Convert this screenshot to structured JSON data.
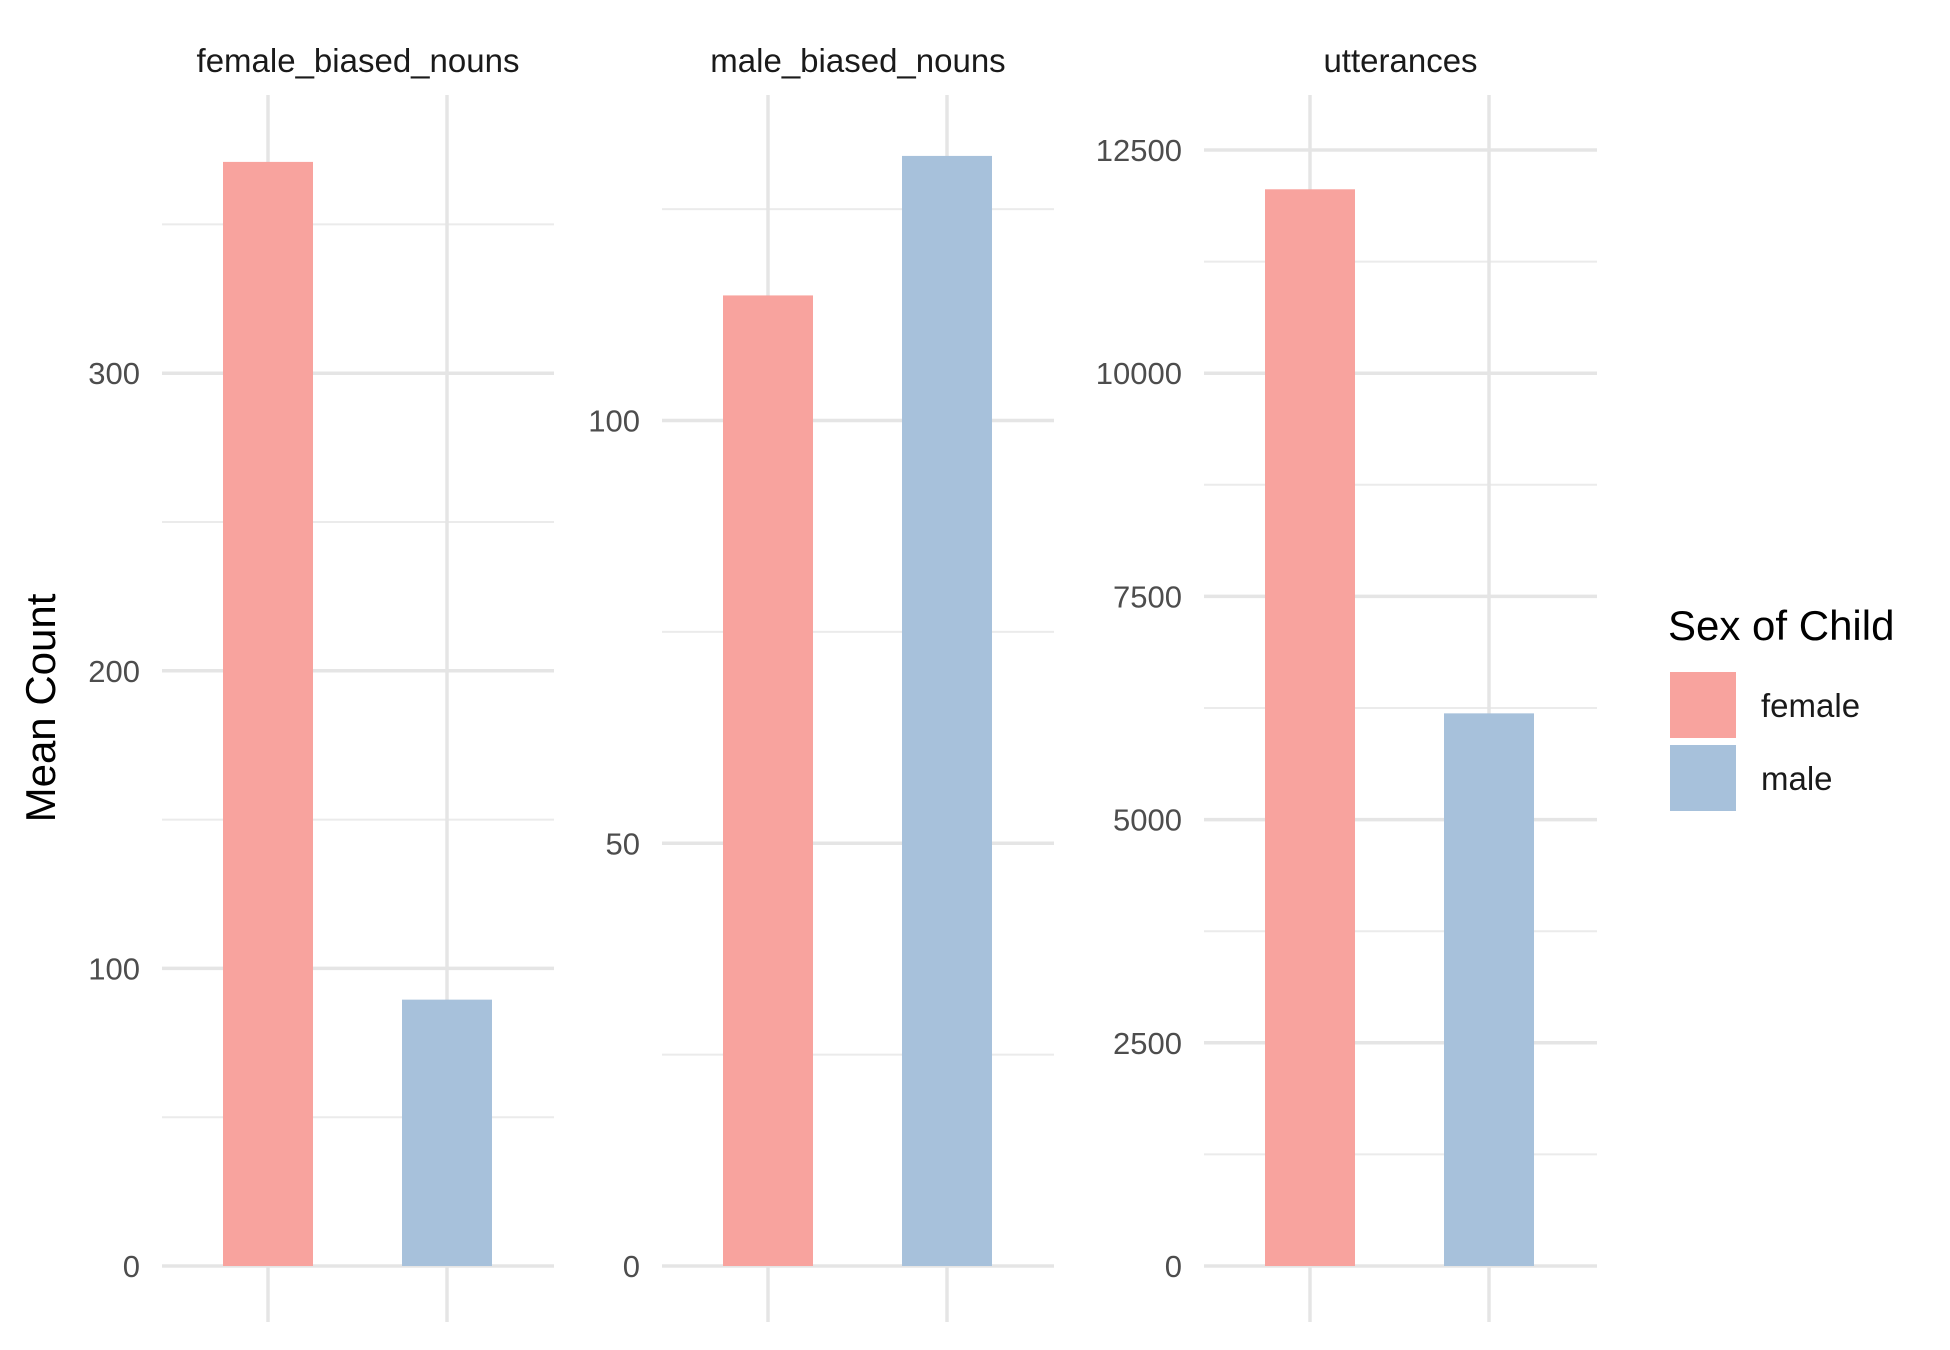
{
  "chart_data": {
    "type": "bar",
    "ylabel": "Mean Count",
    "categories": [
      "female",
      "male"
    ],
    "legend": {
      "title": "Sex of Child",
      "position": "right",
      "entries": [
        {
          "label": "female",
          "color": "#F8A39E"
        },
        {
          "label": "male",
          "color": "#A7C1DB"
        }
      ]
    },
    "grid": true,
    "panels": [
      {
        "title": "female_biased_nouns",
        "ylim": [
          0,
          375
        ],
        "yticks": [
          "0",
          "100",
          "200",
          "300"
        ],
        "ytick_values": [
          0,
          100,
          200,
          300
        ],
        "values": [
          371,
          89.5
        ]
      },
      {
        "title": "male_biased_nouns",
        "ylim": [
          0,
          132
        ],
        "yticks": [
          "0",
          "50",
          "100"
        ],
        "ytick_values": [
          0,
          50,
          100
        ],
        "values": [
          114.8,
          131.3
        ]
      },
      {
        "title": "utterances",
        "ylim": [
          0,
          12500
        ],
        "yticks": [
          "0",
          "2500",
          "5000",
          "7500",
          "10000",
          "12500"
        ],
        "ytick_values": [
          0,
          2500,
          5000,
          7500,
          10000,
          12500
        ],
        "values": [
          12060,
          6190
        ]
      }
    ]
  }
}
